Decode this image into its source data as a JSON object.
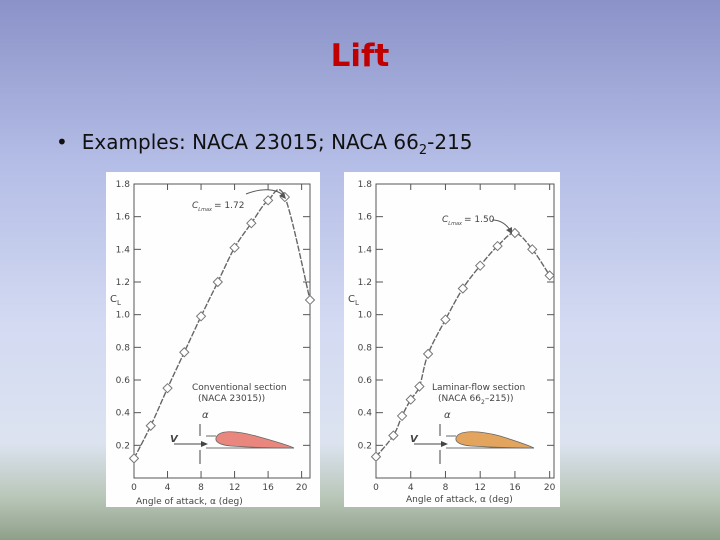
{
  "slide": {
    "title": "Lift",
    "bullet_text": "Examples: NACA 23015; NACA 66",
    "bullet_sub": "2",
    "bullet_tail": "-215"
  },
  "chart_data": [
    {
      "type": "line",
      "xlabel": "Angle of attack, α (deg)",
      "ylabel": "C",
      "ylabel_sub": "L",
      "x_ticks": [
        0,
        4,
        8,
        12,
        16,
        20
      ],
      "y_ticks": [
        0.2,
        0.4,
        0.6,
        0.8,
        1.0,
        1.2,
        1.4,
        1.6,
        1.8
      ],
      "xlim": [
        0,
        21
      ],
      "ylim": [
        0,
        1.8
      ],
      "annotation_main": "C",
      "annotation_sub": "Lmax",
      "annotation_value": "= 1.72",
      "section_label_1": "Conventional section",
      "section_label_2": "(NACA 23015))",
      "velocity_label": "V",
      "alpha_label": "α",
      "airfoil_color": "#e9877e",
      "series": [
        {
          "x": [
            0,
            2,
            4,
            6,
            8,
            10,
            12,
            14,
            16,
            18,
            21
          ],
          "y": [
            0.12,
            0.32,
            0.55,
            0.77,
            0.99,
            1.2,
            1.41,
            1.56,
            1.7,
            1.72,
            1.09
          ]
        }
      ]
    },
    {
      "type": "line",
      "xlabel": "Angle of attack, α (deg)",
      "ylabel": "C",
      "ylabel_sub": "L",
      "x_ticks": [
        0,
        4,
        8,
        12,
        16,
        20
      ],
      "y_ticks": [
        0.2,
        0.4,
        0.6,
        0.8,
        1.0,
        1.2,
        1.4,
        1.6,
        1.8
      ],
      "xlim": [
        0,
        20.5
      ],
      "ylim": [
        0,
        1.8
      ],
      "annotation_main": "C",
      "annotation_sub": "Lmax",
      "annotation_value": "= 1.50",
      "section_label_1": "Laminar-flow section",
      "section_label_2": "(NACA 66",
      "section_label_2_sub": "2",
      "section_label_2_tail": "–215))",
      "velocity_label": "V",
      "alpha_label": "α",
      "airfoil_color": "#e3a55e",
      "series": [
        {
          "x": [
            0,
            2,
            3,
            4,
            5,
            6,
            8,
            10,
            12,
            14,
            16,
            18,
            20
          ],
          "y": [
            0.13,
            0.26,
            0.38,
            0.48,
            0.56,
            0.76,
            0.97,
            1.16,
            1.3,
            1.42,
            1.5,
            1.4,
            1.24
          ]
        }
      ]
    }
  ]
}
